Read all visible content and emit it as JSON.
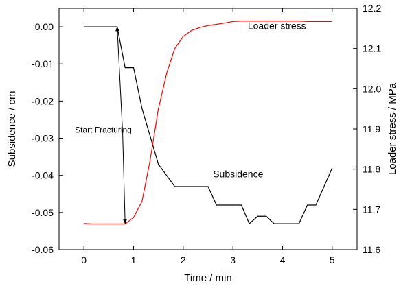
{
  "chart_data": {
    "type": "line",
    "title": "",
    "xlabel": "Time / min",
    "ylabel": "Subsidence / cm",
    "ylabel_right": "Loader stress / MPa",
    "xlim": [
      -0.5,
      5.5
    ],
    "ylim": [
      -0.06,
      0.005
    ],
    "ylim_right": [
      11.6,
      12.2
    ],
    "x_ticks": [
      0,
      1,
      2,
      3,
      4,
      5
    ],
    "x_tick_labels": [
      "0",
      "1",
      "2",
      "3",
      "4",
      "5"
    ],
    "y_ticks": [
      0.0,
      -0.01,
      -0.02,
      -0.03,
      -0.04,
      -0.05,
      -0.06
    ],
    "y_tick_labels": [
      "0.00",
      "-0.01",
      "-0.02",
      "-0.03",
      "-0.04",
      "-0.05",
      "-0.06"
    ],
    "y_right_ticks": [
      12.2,
      12.1,
      12.0,
      11.9,
      11.8,
      11.7,
      11.6
    ],
    "y_right_tick_labels": [
      "12.2",
      "12.1",
      "12.0",
      "11.9",
      "11.8",
      "11.7",
      "11.6"
    ],
    "grid": false,
    "series": [
      {
        "name": "Subsidence",
        "axis": "left",
        "color": "#000000",
        "x": [
          0,
          0.67,
          0.83,
          1.0,
          1.17,
          1.5,
          1.83,
          2.5,
          2.67,
          3.17,
          3.33,
          3.5,
          3.67,
          3.83,
          4.33,
          4.5,
          4.67,
          5.0
        ],
        "y": [
          0,
          0,
          -0.011,
          -0.011,
          -0.022,
          -0.037,
          -0.043,
          -0.043,
          -0.048,
          -0.048,
          -0.053,
          -0.051,
          -0.051,
          -0.053,
          -0.053,
          -0.048,
          -0.048,
          -0.038
        ]
      },
      {
        "name": "Loader stress",
        "axis": "right",
        "color": "#ff0000",
        "x": [
          0,
          0.17,
          0.33,
          0.5,
          0.67,
          0.83,
          1.0,
          1.17,
          1.33,
          1.5,
          1.67,
          1.83,
          2.0,
          2.17,
          2.33,
          2.5,
          2.67,
          2.83,
          3.0,
          3.17,
          3.33,
          3.5,
          3.67,
          3.83,
          4.0,
          4.17,
          4.33,
          4.5,
          4.67,
          4.83,
          5.0
        ],
        "y": [
          11.665,
          11.664,
          11.664,
          11.664,
          11.664,
          11.664,
          11.68,
          11.72,
          11.82,
          11.95,
          12.04,
          12.1,
          12.13,
          12.145,
          12.152,
          12.157,
          12.16,
          12.163,
          12.167,
          12.168,
          12.168,
          12.168,
          12.168,
          12.168,
          12.168,
          12.168,
          12.168,
          12.167,
          12.167,
          12.167,
          12.167
        ]
      }
    ],
    "annotations": [
      {
        "text": "Loader stress",
        "x": 3.3,
        "y_right": 12.148
      },
      {
        "text": "Subsidence",
        "x": 2.6,
        "y": -0.0405
      },
      {
        "text": "Start Fracturing",
        "x": -0.18,
        "y": -0.0285
      }
    ],
    "arrows": [
      {
        "from": [
          0.78,
          -0.0285
        ],
        "to": [
          0.67,
          0.0
        ]
      },
      {
        "from": [
          0.78,
          -0.0285
        ],
        "to": [
          0.83,
          -0.053
        ]
      }
    ]
  }
}
